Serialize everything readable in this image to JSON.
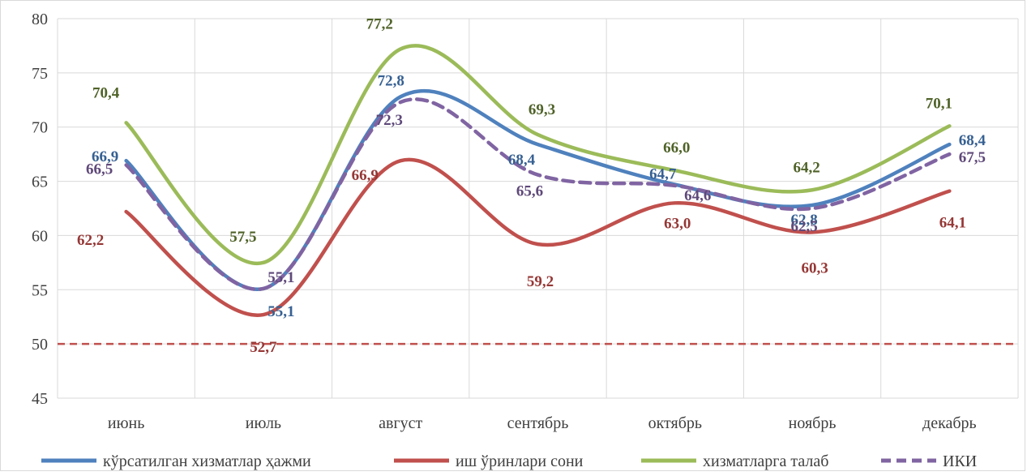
{
  "chart_data": {
    "type": "line",
    "categories": [
      "июнь",
      "июль",
      "август",
      "сентябрь",
      "октябрь",
      "ноябрь",
      "декабрь"
    ],
    "ylim": [
      45,
      80
    ],
    "yticks": [
      45,
      50,
      55,
      60,
      65,
      70,
      75,
      80
    ],
    "ytick_labels": [
      "45",
      "50",
      "55",
      "60",
      "65",
      "70",
      "75",
      "80"
    ],
    "grid": true,
    "smooth": true,
    "legend_position": "bottom",
    "reference_line": {
      "value": 50,
      "color": "#c0504d",
      "style": "dashed"
    },
    "series": [
      {
        "name": "кўрсатилган хизматлар ҳажми",
        "color": "#4f81bd",
        "dash": false,
        "values": [
          66.9,
          55.1,
          72.8,
          68.4,
          64.7,
          62.8,
          68.4
        ],
        "labels": [
          "66,9",
          "55,1",
          "72,8",
          "68,4",
          "64,7",
          "62,8",
          "68,4"
        ],
        "label_color": "#366092"
      },
      {
        "name": "иш ўринлари сони",
        "color": "#c0504d",
        "dash": false,
        "values": [
          62.2,
          52.7,
          66.9,
          59.2,
          63.0,
          60.3,
          64.1
        ],
        "labels": [
          "62,2",
          "52,7",
          "66,9",
          "59,2",
          "63,0",
          "60,3",
          "64,1"
        ],
        "label_color": "#953735"
      },
      {
        "name": "хизматларга талаб",
        "color": "#9bbb59",
        "dash": false,
        "values": [
          70.4,
          57.5,
          77.2,
          69.3,
          66.0,
          64.2,
          70.1
        ],
        "labels": [
          "70,4",
          "57,5",
          "77,2",
          "69,3",
          "66,0",
          "64,2",
          "70,1"
        ],
        "label_color": "#4f6228"
      },
      {
        "name": "ИКИ",
        "color": "#8064a2",
        "dash": true,
        "values": [
          66.5,
          55.1,
          72.3,
          65.6,
          64.6,
          62.5,
          67.5
        ],
        "labels": [
          "66,5",
          "55,1",
          "72,3",
          "65,6",
          "64,6",
          "62,5",
          "67,5"
        ],
        "label_color": "#5f497a"
      }
    ]
  }
}
